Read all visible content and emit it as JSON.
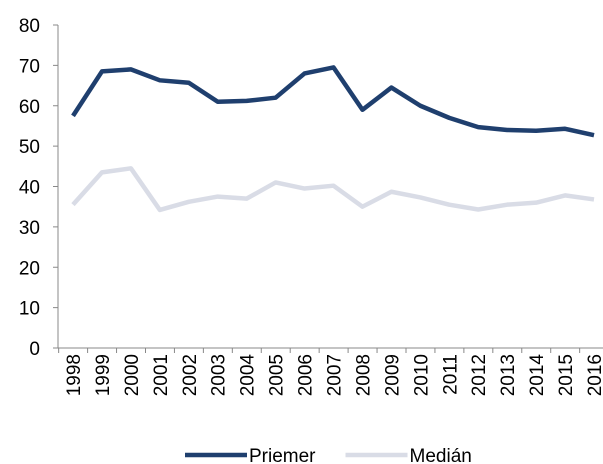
{
  "chart_data": {
    "type": "line",
    "categories": [
      "1998",
      "1999",
      "2000",
      "2001",
      "2002",
      "2003",
      "2004",
      "2005",
      "2006",
      "2007",
      "2008",
      "2009",
      "2010",
      "2011",
      "2012",
      "2013",
      "2014",
      "2015",
      "2016"
    ],
    "series": [
      {
        "name": "Priemer",
        "color": "#1f3f6e",
        "values": [
          57.5,
          68.5,
          69,
          66.3,
          65.7,
          61,
          61.2,
          62,
          68,
          69.5,
          59,
          64.5,
          60,
          57,
          54.7,
          54,
          53.8,
          54.3,
          52.7
        ]
      },
      {
        "name": "Medián",
        "color": "#d9dce6",
        "values": [
          35.5,
          43.5,
          44.5,
          34.2,
          36.2,
          37.5,
          37,
          41,
          39.5,
          40.2,
          35,
          38.7,
          37.3,
          35.5,
          34.3,
          35.5,
          36,
          37.8,
          36.8
        ]
      }
    ],
    "ylim": [
      0,
      80
    ],
    "yticks": [
      0,
      10,
      20,
      30,
      40,
      50,
      60,
      70,
      80
    ],
    "grid": false,
    "legend": "bottom"
  }
}
